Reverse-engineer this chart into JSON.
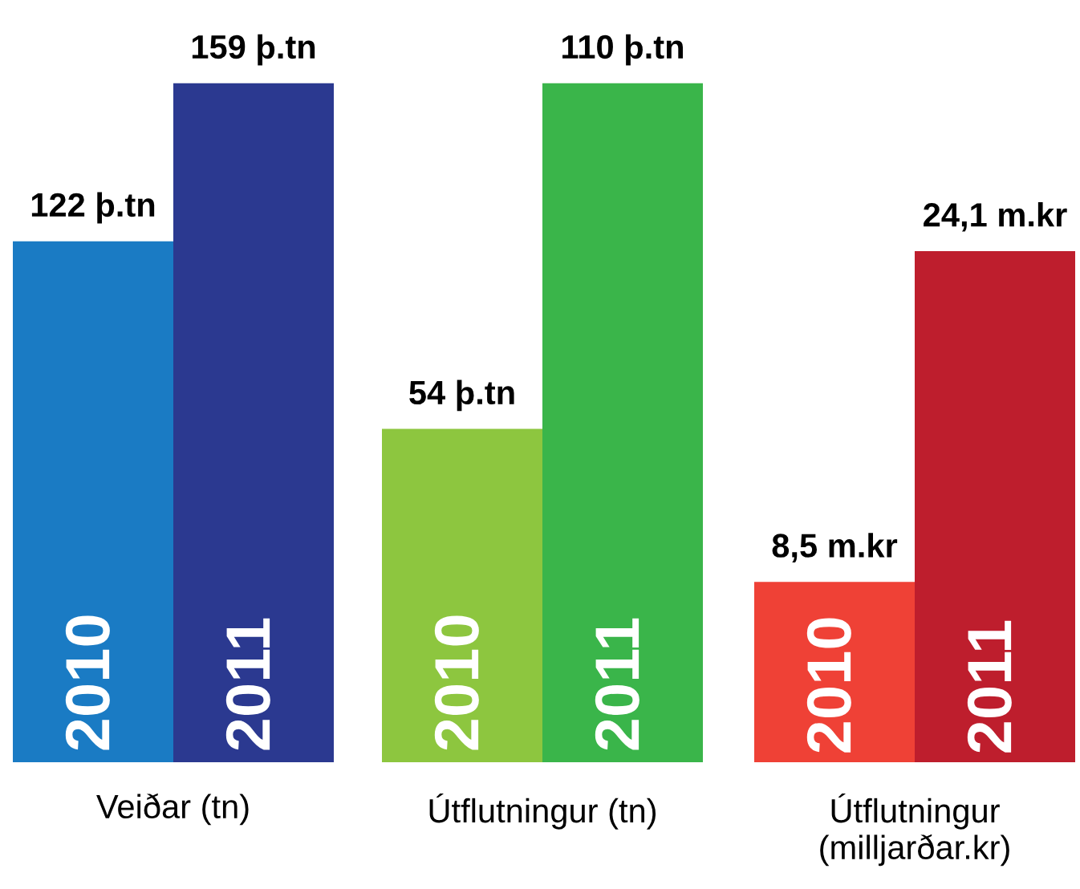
{
  "chart_data": [
    {
      "type": "bar",
      "categories": [
        "2010",
        "2011"
      ],
      "values": [
        122,
        159
      ],
      "colors": [
        "#1a7bc4",
        "#2b3990"
      ],
      "value_labels": [
        "122 þ.tn",
        "159 þ.tn"
      ],
      "xlabel": "Veiðar (tn)"
    },
    {
      "type": "bar",
      "categories": [
        "2010",
        "2011"
      ],
      "values": [
        54,
        110
      ],
      "colors": [
        "#8dc63f",
        "#3ab54a"
      ],
      "value_labels": [
        "54 þ.tn",
        "110 þ.tn"
      ],
      "xlabel": "Útflutningur (tn)"
    },
    {
      "type": "bar",
      "categories": [
        "2010",
        "2011"
      ],
      "values": [
        8.5,
        24.1
      ],
      "colors": [
        "#ef4136",
        "#be1e2d"
      ],
      "value_labels": [
        "8,5 m.kr",
        "24,1 m.kr"
      ],
      "xlabel": "Útflutningur\n(milljarðar.kr)"
    }
  ]
}
